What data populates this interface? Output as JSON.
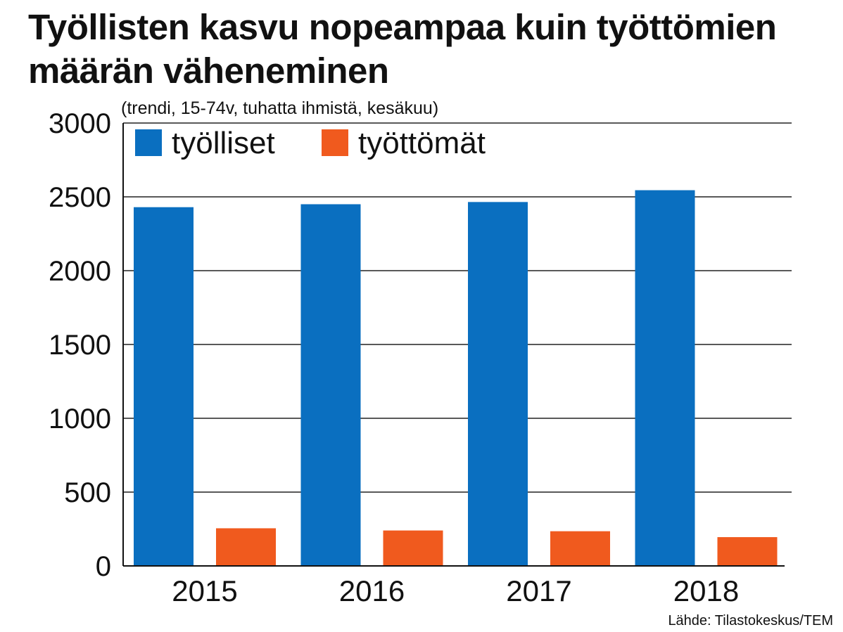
{
  "chart_data": {
    "type": "bar",
    "title": "Työllisten kasvu nopeampaa kuin työttömien määrän väheneminen",
    "subtitle": "(trendi, 15-74v, tuhatta ihmistä, kesäkuu)",
    "categories": [
      "2015",
      "2016",
      "2017",
      "2018"
    ],
    "series": [
      {
        "name": "työlliset",
        "color": "#0a6fc0",
        "values": [
          2430,
          2450,
          2465,
          2545
        ]
      },
      {
        "name": "työttömät",
        "color": "#f05a1e",
        "values": [
          255,
          240,
          235,
          195
        ]
      }
    ],
    "ylim": [
      0,
      3000
    ],
    "yticks": [
      0,
      500,
      1000,
      1500,
      2000,
      2500,
      3000
    ],
    "ytick_labels": [
      "0",
      "500",
      "1000",
      "1500",
      "2000",
      "2500",
      "3000"
    ],
    "grid": true,
    "legend_position": "top-left",
    "source": "Lähde: Tilastokeskus/TEM"
  }
}
